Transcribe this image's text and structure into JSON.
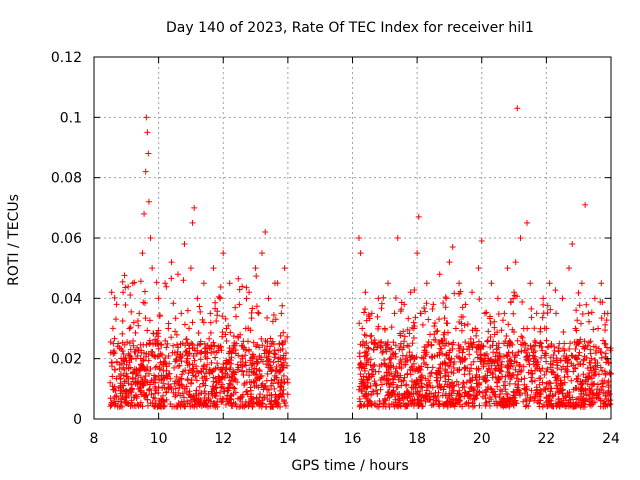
{
  "chart_data": {
    "type": "scatter",
    "title": "Day 140 of 2023, Rate Of TEC Index for receiver hil1",
    "xlabel": "GPS time / hours",
    "ylabel": "ROTI / TECUs",
    "xlim": [
      8,
      24
    ],
    "ylim": [
      0,
      0.12
    ],
    "x_ticks": [
      "8",
      "10",
      "12",
      "14",
      "16",
      "18",
      "20",
      "22",
      "24"
    ],
    "y_ticks": [
      "0",
      "0.02",
      "0.04",
      "0.06",
      "0.08",
      "0.1",
      "0.12"
    ],
    "grid": true,
    "marker": "+",
    "series_color": "#ff0000",
    "series": [
      {
        "name": "ROTI",
        "points": [
          [
            8.5,
            0.012
          ],
          [
            8.6,
            0.025
          ],
          [
            8.7,
            0.038
          ],
          [
            8.8,
            0.018
          ],
          [
            8.9,
            0.042
          ],
          [
            9.0,
            0.015
          ],
          [
            9.1,
            0.03
          ],
          [
            9.2,
            0.045
          ],
          [
            9.3,
            0.02
          ],
          [
            9.4,
            0.035
          ],
          [
            9.5,
            0.055
          ],
          [
            9.55,
            0.068
          ],
          [
            9.6,
            0.082
          ],
          [
            9.62,
            0.1
          ],
          [
            9.65,
            0.095
          ],
          [
            9.68,
            0.088
          ],
          [
            9.7,
            0.072
          ],
          [
            9.75,
            0.06
          ],
          [
            9.8,
            0.05
          ],
          [
            9.9,
            0.025
          ],
          [
            10.0,
            0.04
          ],
          [
            10.1,
            0.018
          ],
          [
            10.2,
            0.045
          ],
          [
            10.3,
            0.03
          ],
          [
            10.4,
            0.052
          ],
          [
            10.5,
            0.022
          ],
          [
            10.6,
            0.048
          ],
          [
            10.7,
            0.035
          ],
          [
            10.8,
            0.058
          ],
          [
            10.9,
            0.02
          ],
          [
            11.0,
            0.05
          ],
          [
            11.05,
            0.065
          ],
          [
            11.1,
            0.07
          ],
          [
            11.2,
            0.04
          ],
          [
            11.3,
            0.025
          ],
          [
            11.4,
            0.045
          ],
          [
            11.5,
            0.018
          ],
          [
            11.6,
            0.035
          ],
          [
            11.7,
            0.05
          ],
          [
            11.8,
            0.022
          ],
          [
            11.9,
            0.04
          ],
          [
            12.0,
            0.055
          ],
          [
            12.1,
            0.03
          ],
          [
            12.2,
            0.045
          ],
          [
            12.3,
            0.015
          ],
          [
            12.4,
            0.025
          ],
          [
            12.5,
            0.038
          ],
          [
            12.6,
            0.02
          ],
          [
            12.7,
            0.03
          ],
          [
            12.8,
            0.042
          ],
          [
            12.9,
            0.018
          ],
          [
            13.0,
            0.05
          ],
          [
            13.1,
            0.035
          ],
          [
            13.2,
            0.055
          ],
          [
            13.3,
            0.062
          ],
          [
            13.4,
            0.04
          ],
          [
            13.5,
            0.025
          ],
          [
            13.6,
            0.045
          ],
          [
            13.7,
            0.02
          ],
          [
            13.8,
            0.035
          ],
          [
            13.9,
            0.05
          ],
          [
            14.0,
            0.012
          ],
          [
            16.2,
            0.06
          ],
          [
            16.25,
            0.055
          ],
          [
            16.3,
            0.03
          ],
          [
            16.4,
            0.042
          ],
          [
            16.5,
            0.015
          ],
          [
            16.6,
            0.035
          ],
          [
            16.7,
            0.025
          ],
          [
            16.8,
            0.04
          ],
          [
            16.9,
            0.018
          ],
          [
            17.0,
            0.03
          ],
          [
            17.1,
            0.045
          ],
          [
            17.2,
            0.02
          ],
          [
            17.3,
            0.035
          ],
          [
            17.4,
            0.06
          ],
          [
            17.5,
            0.025
          ],
          [
            17.6,
            0.038
          ],
          [
            17.7,
            0.015
          ],
          [
            17.8,
            0.042
          ],
          [
            17.9,
            0.03
          ],
          [
            18.0,
            0.055
          ],
          [
            18.05,
            0.067
          ],
          [
            18.1,
            0.035
          ],
          [
            18.2,
            0.02
          ],
          [
            18.3,
            0.045
          ],
          [
            18.4,
            0.028
          ],
          [
            18.5,
            0.038
          ],
          [
            18.6,
            0.015
          ],
          [
            18.7,
            0.048
          ],
          [
            18.8,
            0.025
          ],
          [
            18.9,
            0.04
          ],
          [
            19.0,
            0.052
          ],
          [
            19.1,
            0.057
          ],
          [
            19.2,
            0.03
          ],
          [
            19.3,
            0.045
          ],
          [
            19.4,
            0.02
          ],
          [
            19.5,
            0.038
          ],
          [
            19.6,
            0.025
          ],
          [
            19.7,
            0.042
          ],
          [
            19.8,
            0.03
          ],
          [
            19.9,
            0.05
          ],
          [
            20.0,
            0.059
          ],
          [
            20.1,
            0.035
          ],
          [
            20.2,
            0.02
          ],
          [
            20.3,
            0.045
          ],
          [
            20.4,
            0.028
          ],
          [
            20.5,
            0.04
          ],
          [
            20.6,
            0.018
          ],
          [
            20.7,
            0.035
          ],
          [
            20.8,
            0.05
          ],
          [
            20.9,
            0.025
          ],
          [
            21.0,
            0.042
          ],
          [
            21.05,
            0.052
          ],
          [
            21.1,
            0.103
          ],
          [
            21.2,
            0.06
          ],
          [
            21.3,
            0.03
          ],
          [
            21.4,
            0.065
          ],
          [
            21.5,
            0.045
          ],
          [
            21.6,
            0.02
          ],
          [
            21.7,
            0.035
          ],
          [
            21.8,
            0.025
          ],
          [
            21.9,
            0.04
          ],
          [
            22.0,
            0.03
          ],
          [
            22.1,
            0.045
          ],
          [
            22.2,
            0.018
          ],
          [
            22.3,
            0.035
          ],
          [
            22.4,
            0.025
          ],
          [
            22.5,
            0.04
          ],
          [
            22.6,
            0.02
          ],
          [
            22.7,
            0.05
          ],
          [
            22.8,
            0.058
          ],
          [
            22.9,
            0.03
          ],
          [
            23.0,
            0.025
          ],
          [
            23.1,
            0.045
          ],
          [
            23.2,
            0.071
          ],
          [
            23.3,
            0.035
          ],
          [
            23.4,
            0.02
          ],
          [
            23.5,
            0.04
          ],
          [
            23.6,
            0.03
          ],
          [
            23.7,
            0.045
          ],
          [
            23.8,
            0.025
          ],
          [
            23.9,
            0.035
          ],
          [
            24.0,
            0.015
          ]
        ],
        "envelope": [
          {
            "x": [
              8.5,
              14.0
            ],
            "ylow": 0.004,
            "yhigh_pattern": [
              0.04,
              0.035,
              0.045,
              0.03
            ]
          },
          {
            "x": [
              16.2,
              24.0
            ],
            "ylow": 0.004,
            "yhigh_pattern": [
              0.04,
              0.035,
              0.03,
              0.038
            ]
          }
        ]
      }
    ]
  }
}
